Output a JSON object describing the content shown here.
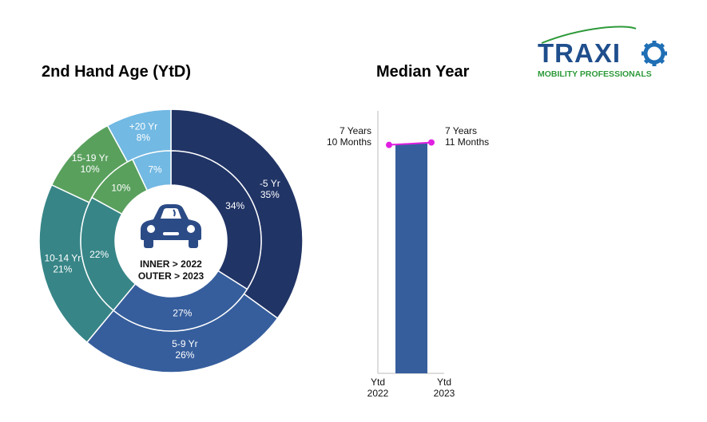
{
  "brand": {
    "name": "TRAXIO",
    "tagline": "MOBILITY PROFESSIONALS",
    "colors": {
      "navy": "#1f4e8c",
      "green": "#2e9a3a",
      "gear": "#1f6fb5"
    }
  },
  "titles": {
    "donut": "2nd Hand Age (YtD)",
    "median": "Median Year"
  },
  "donut_center": {
    "icon": "car-icon",
    "line1": "INNER > 2022",
    "line2": "OUTER > 2023"
  },
  "chart_data": [
    {
      "type": "pie",
      "variant": "donut-two-ring",
      "title": "2nd Hand Age (YtD)",
      "categories": [
        "-5 Yr",
        "5-9 Yr",
        "10-14 Yr",
        "15-19 Yr",
        "+20 Yr"
      ],
      "colors": [
        "#213466",
        "#365e9d",
        "#378587",
        "#59a05d",
        "#72b9e3"
      ],
      "series": [
        {
          "name": "INNER > 2022",
          "values": [
            34,
            27,
            22,
            10,
            7
          ],
          "labels": [
            "34%",
            "27%",
            "22%",
            "10%",
            "7%"
          ]
        },
        {
          "name": "OUTER > 2023",
          "values": [
            35,
            26,
            21,
            10,
            8
          ],
          "labels": [
            "35%",
            "26%",
            "21%",
            "10%",
            "8%"
          ]
        }
      ],
      "outer_labels": [
        [
          "-5 Yr",
          "35%"
        ],
        [
          "5-9 Yr",
          "26%"
        ],
        [
          "10-14 Yr",
          "21%"
        ],
        [
          "15-19 Yr",
          "10%"
        ],
        [
          "+20 Yr",
          "8%"
        ]
      ]
    },
    {
      "type": "area",
      "title": "Median Year",
      "categories": [
        "Ytd 2022",
        "Ytd 2023"
      ],
      "category_lines": [
        [
          "Ytd",
          "2022"
        ],
        [
          "Ytd",
          "2023"
        ]
      ],
      "values_months": [
        94,
        95
      ],
      "value_labels": [
        [
          "7 Years",
          "10 Months"
        ],
        [
          "7 Years",
          "11 Months"
        ]
      ],
      "ylim_months": [
        0,
        108
      ],
      "fill_color": "#365e9d",
      "line_color": "#e020e0"
    }
  ]
}
